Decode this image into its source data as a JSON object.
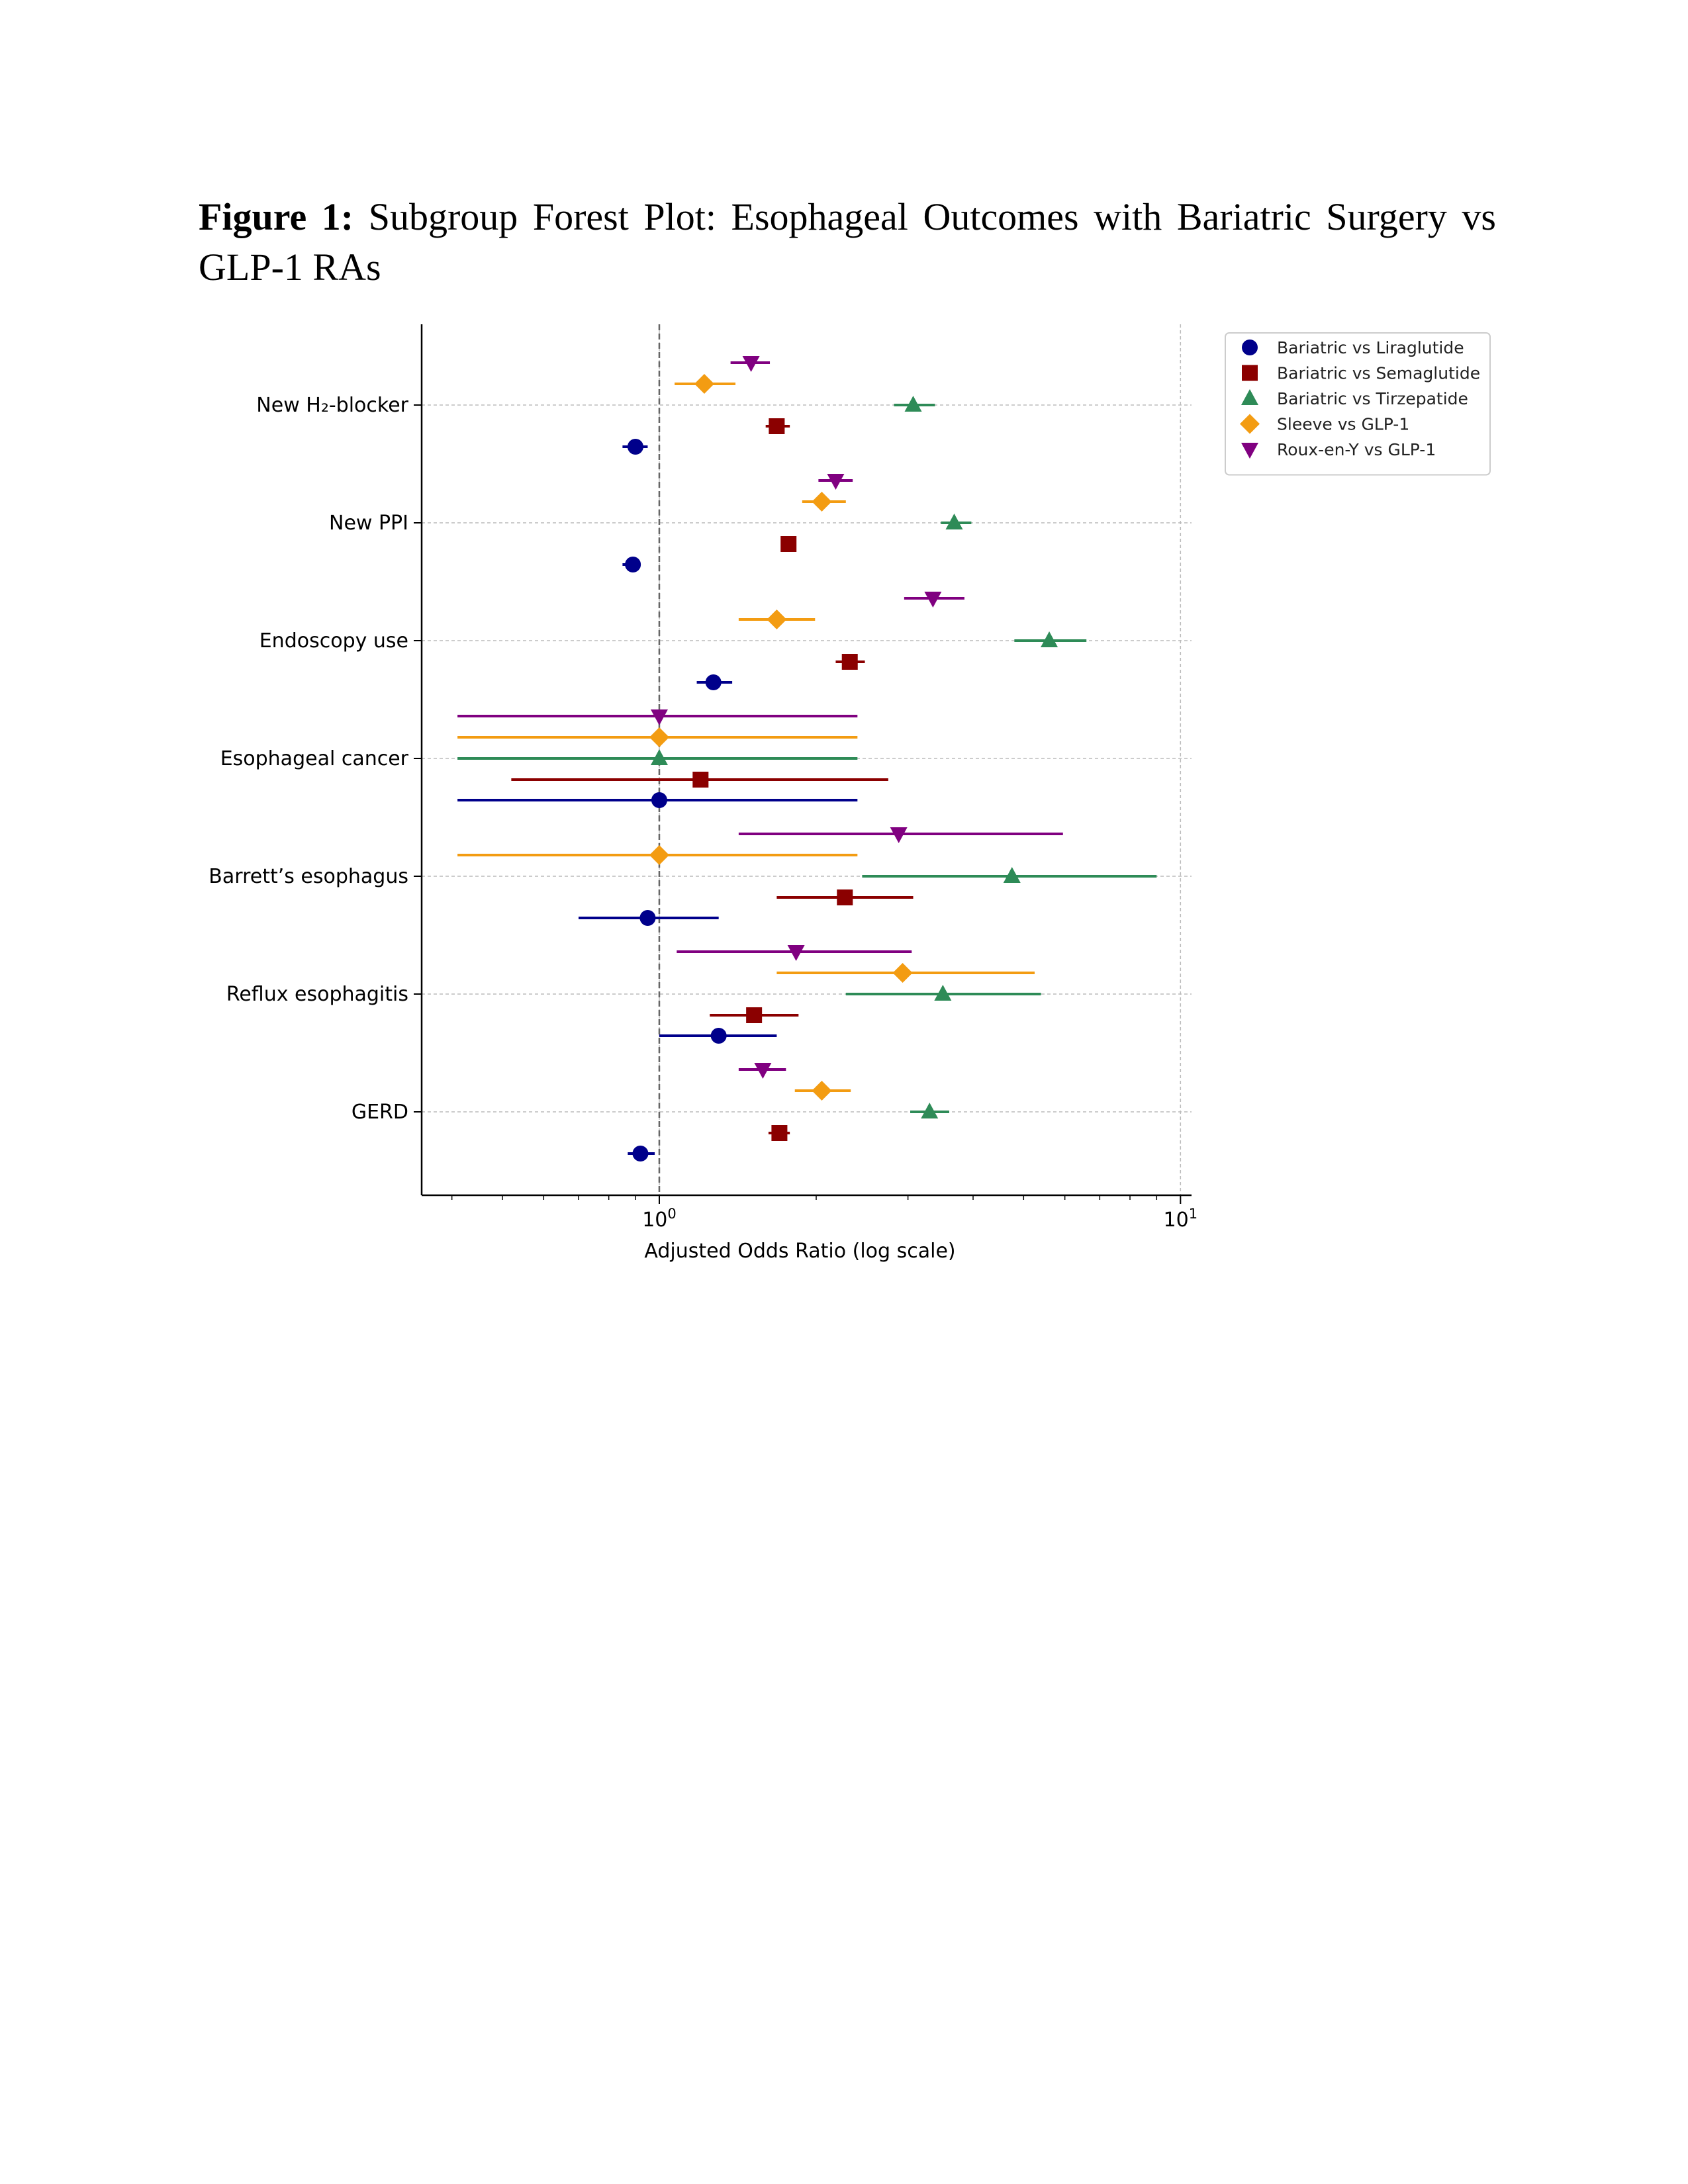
{
  "caption": {
    "label": "Figure 1:",
    "text": "Subgroup Forest Plot: Esophageal Outcomes with Bariatric Surgery vs GLP-1 RAs"
  },
  "chart_data": {
    "type": "scatter",
    "subtype": "forest-plot",
    "xscale": "log",
    "xlabel": "Adjusted Odds Ratio (log scale)",
    "xlim": [
      0.35,
      10.5
    ],
    "xticks": [
      {
        "value": 1,
        "base": "10",
        "exp": "0"
      },
      {
        "value": 10,
        "base": "10",
        "exp": "1"
      }
    ],
    "reference_line": 1,
    "grid": true,
    "legend_position": "outside-top-right",
    "categories": [
      "New H₂-blocker",
      "New PPI",
      "Endoscopy use",
      "Esophageal cancer",
      "Barrett’s esophagus",
      "Reflux esophagitis",
      "GERD"
    ],
    "series": [
      {
        "name": "Bariatric vs Liraglutide",
        "marker": "circle",
        "color": "#00008b",
        "points": [
          {
            "or": 0.9,
            "lo": 0.85,
            "hi": 0.95
          },
          {
            "or": 0.89,
            "lo": 0.85,
            "hi": 0.92
          },
          {
            "or": 1.27,
            "lo": 1.18,
            "hi": 1.38
          },
          {
            "or": 1.0,
            "lo": 0.41,
            "hi": 2.4
          },
          {
            "or": 0.95,
            "lo": 0.7,
            "hi": 1.3
          },
          {
            "or": 1.3,
            "lo": 1.0,
            "hi": 1.68
          },
          {
            "or": 0.92,
            "lo": 0.87,
            "hi": 0.98
          }
        ]
      },
      {
        "name": "Bariatric vs Semaglutide",
        "marker": "square",
        "color": "#8b0000",
        "points": [
          {
            "or": 1.68,
            "lo": 1.6,
            "hi": 1.78
          },
          {
            "or": 1.77,
            "lo": 1.72,
            "hi": 1.82
          },
          {
            "or": 2.32,
            "lo": 2.18,
            "hi": 2.48
          },
          {
            "or": 1.2,
            "lo": 0.52,
            "hi": 2.75
          },
          {
            "or": 2.27,
            "lo": 1.68,
            "hi": 3.07
          },
          {
            "or": 1.52,
            "lo": 1.25,
            "hi": 1.85
          },
          {
            "or": 1.7,
            "lo": 1.62,
            "hi": 1.78
          }
        ]
      },
      {
        "name": "Bariatric vs Tirzepatide",
        "marker": "triangle-up",
        "color": "#2e8b57",
        "points": [
          {
            "or": 3.07,
            "lo": 2.82,
            "hi": 3.38
          },
          {
            "or": 3.68,
            "lo": 3.47,
            "hi": 3.97
          },
          {
            "or": 5.6,
            "lo": 4.8,
            "hi": 6.6
          },
          {
            "or": 1.0,
            "lo": 0.41,
            "hi": 2.4
          },
          {
            "or": 4.75,
            "lo": 2.45,
            "hi": 9.0
          },
          {
            "or": 3.5,
            "lo": 2.28,
            "hi": 5.4
          },
          {
            "or": 3.3,
            "lo": 3.03,
            "hi": 3.6
          }
        ]
      },
      {
        "name": "Sleeve vs GLP-1",
        "marker": "diamond",
        "color": "#f39c12",
        "points": [
          {
            "or": 1.22,
            "lo": 1.07,
            "hi": 1.4
          },
          {
            "or": 2.05,
            "lo": 1.88,
            "hi": 2.28
          },
          {
            "or": 1.68,
            "lo": 1.42,
            "hi": 1.99
          },
          {
            "or": 1.0,
            "lo": 0.41,
            "hi": 2.4
          },
          {
            "or": 1.0,
            "lo": 0.41,
            "hi": 2.4
          },
          {
            "or": 2.93,
            "lo": 1.68,
            "hi": 5.25
          },
          {
            "or": 2.05,
            "lo": 1.82,
            "hi": 2.33
          }
        ]
      },
      {
        "name": "Roux-en-Y vs GLP-1",
        "marker": "triangle-down",
        "color": "#800080",
        "points": [
          {
            "or": 1.5,
            "lo": 1.37,
            "hi": 1.63
          },
          {
            "or": 2.18,
            "lo": 2.02,
            "hi": 2.35
          },
          {
            "or": 3.35,
            "lo": 2.95,
            "hi": 3.85
          },
          {
            "or": 1.0,
            "lo": 0.41,
            "hi": 2.4
          },
          {
            "or": 2.88,
            "lo": 1.42,
            "hi": 5.95
          },
          {
            "or": 1.83,
            "lo": 1.08,
            "hi": 3.05
          },
          {
            "or": 1.58,
            "lo": 1.42,
            "hi": 1.75
          }
        ]
      }
    ]
  }
}
